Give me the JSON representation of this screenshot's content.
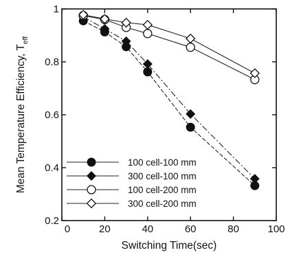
{
  "chart_data": {
    "type": "line",
    "title": "",
    "xlabel": "Switching Time(sec)",
    "ylabel": "Mean Temperature Efficiency, T",
    "ylabel_subscript": "eff",
    "xlim": [
      0,
      100
    ],
    "ylim": [
      0.2,
      1.0
    ],
    "x_ticks": [
      0,
      20,
      40,
      60,
      80,
      100
    ],
    "y_ticks": [
      0.2,
      0.4,
      0.6,
      0.8,
      1.0
    ],
    "x_tick_labels": [
      "0",
      "20",
      "40",
      "60",
      "80",
      "100"
    ],
    "y_tick_labels": [
      "0.2",
      "0.4",
      "0.6",
      "0.8",
      "1"
    ],
    "grid": false,
    "legend_position": "bottom-left",
    "series": [
      {
        "name": "100 cell-100 mm",
        "marker": "circle-filled",
        "x": [
          10,
          20,
          30,
          40,
          60,
          90
        ],
        "y": [
          0.955,
          0.913,
          0.857,
          0.762,
          0.553,
          0.332
        ]
      },
      {
        "name": "300 cell-100 mm",
        "marker": "diamond-filled",
        "x": [
          10,
          20,
          30,
          40,
          60,
          90
        ],
        "y": [
          0.97,
          0.925,
          0.878,
          0.792,
          0.603,
          0.358
        ]
      },
      {
        "name": "100 cell-200 mm",
        "marker": "circle-open",
        "x": [
          10,
          20,
          30,
          40,
          60,
          90
        ],
        "y": [
          0.975,
          0.96,
          0.93,
          0.907,
          0.855,
          0.733
        ]
      },
      {
        "name": "300 cell-200 mm",
        "marker": "diamond-open",
        "x": [
          10,
          20,
          30,
          40,
          60,
          90
        ],
        "y": [
          0.978,
          0.962,
          0.948,
          0.94,
          0.888,
          0.757
        ]
      }
    ]
  }
}
